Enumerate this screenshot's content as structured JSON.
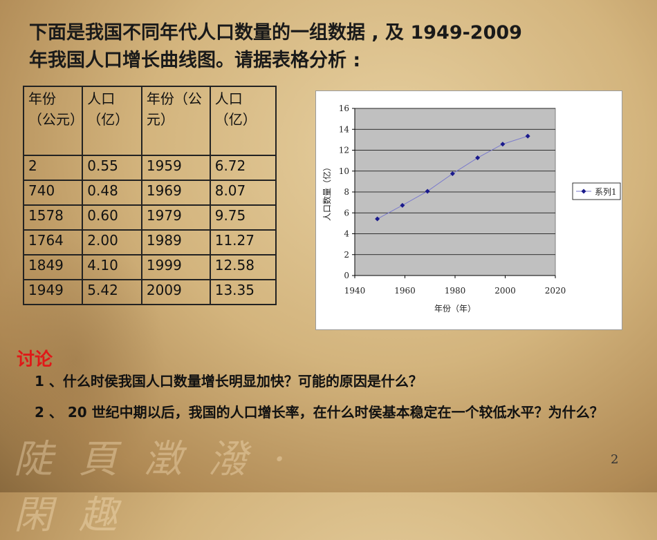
{
  "title": {
    "line1": "下面是我国不同年代人口数量的一组数据 , 及 1949-2009",
    "line2": "年我国人口增长曲线图。请据表格分析 :"
  },
  "table": {
    "headers": [
      "年份（公元）",
      "人口（亿）",
      "年份（公元）",
      "人口（亿）"
    ],
    "rows": [
      [
        "2",
        "0.55",
        "1959",
        "6.72"
      ],
      [
        "740",
        "0.48",
        "1969",
        "8.07"
      ],
      [
        "1578",
        "0.60",
        "1979",
        "9.75"
      ],
      [
        "1764",
        "2.00",
        "1989",
        "11.27"
      ],
      [
        "1849",
        "4.10",
        "1999",
        "12.58"
      ],
      [
        "1949",
        "5.42",
        "2009",
        "13.35"
      ]
    ]
  },
  "chart_data": {
    "type": "scatter",
    "xlabel": "年份（年）",
    "ylabel": "人口数量（亿）",
    "xlim": [
      1940,
      2020
    ],
    "ylim": [
      0,
      16
    ],
    "xticks": [
      "1940",
      "1960",
      "1980",
      "2000",
      "2020"
    ],
    "yticks": [
      "0",
      "2",
      "4",
      "6",
      "8",
      "10",
      "12",
      "14",
      "16"
    ],
    "grid": true,
    "legend": "right",
    "series": [
      {
        "name": "系列1",
        "x": [
          1949,
          1959,
          1969,
          1979,
          1989,
          1999,
          2009
        ],
        "y": [
          5.42,
          6.72,
          8.07,
          9.75,
          11.27,
          12.58,
          13.35
        ]
      }
    ],
    "colors": {
      "marker": "#1a1a8c",
      "line": "#7a7acc",
      "plot_bg": "#c0c0c0"
    }
  },
  "discussion": {
    "heading": "讨论",
    "q1": "1 、什么时侯我国人口数量增长明显加快？可能的原因是什么？",
    "q2": "2 、 20 世纪中期以后，我国的人口增长率，在什么时侯基本稳定在一个较低水平？为什么？"
  },
  "page_number": "2",
  "background": {
    "calligraphy": "陡 頁 澂 潑 · 閑 趣"
  }
}
